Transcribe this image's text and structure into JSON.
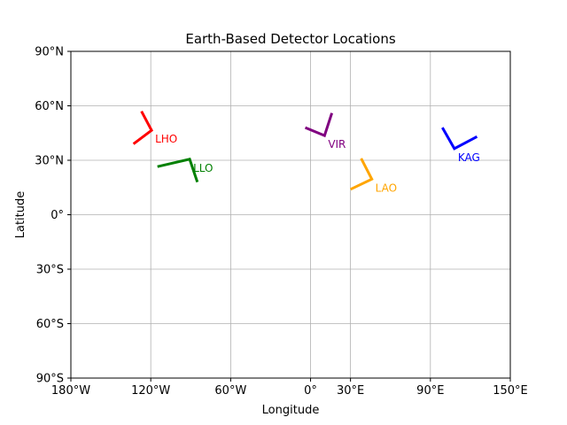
{
  "chart_data": {
    "type": "scatter",
    "title": "Earth-Based Detector Locations",
    "xlabel": "Longitude",
    "ylabel": "Latitude",
    "xlim": [
      -180,
      150
    ],
    "ylim": [
      -90,
      90
    ],
    "grid": true,
    "x_ticks": [
      -180,
      -120,
      -60,
      0,
      30,
      90,
      150
    ],
    "x_tick_labels": [
      "180°W",
      "120°W",
      "60°W",
      "0°",
      "30°E",
      "90°E",
      "150°E"
    ],
    "y_ticks": [
      -90,
      -60,
      -30,
      0,
      30,
      60,
      90
    ],
    "y_tick_labels": [
      "90°S",
      "60°S",
      "30°S",
      "0°",
      "30°N",
      "60°N",
      "90°N"
    ],
    "detectors": [
      {
        "label": "LHO",
        "lon": -119.4,
        "lat": 46.5,
        "arm1": [
          -127.0,
          57.0
        ],
        "arm2": [
          -133.0,
          39.0
        ],
        "color": "#ff0000"
      },
      {
        "label": "LLO",
        "lon": -90.8,
        "lat": 30.6,
        "arm1": [
          -115.0,
          26.5
        ],
        "arm2": [
          -85.0,
          18.0
        ],
        "color": "#008000"
      },
      {
        "label": "VIR",
        "lon": 10.5,
        "lat": 43.6,
        "arm1": [
          -4.0,
          48.0
        ],
        "arm2": [
          16.0,
          56.0
        ],
        "color": "#800080"
      },
      {
        "label": "LAO",
        "lon": 46.0,
        "lat": 19.6,
        "arm1": [
          38.0,
          31.0
        ],
        "arm2": [
          30.0,
          14.0
        ],
        "color": "#ffa500"
      },
      {
        "label": "KAG",
        "lon": 108.0,
        "lat": 36.4,
        "arm1": [
          99.0,
          48.0
        ],
        "arm2": [
          125.0,
          43.0
        ],
        "color": "#0000ff"
      }
    ]
  }
}
